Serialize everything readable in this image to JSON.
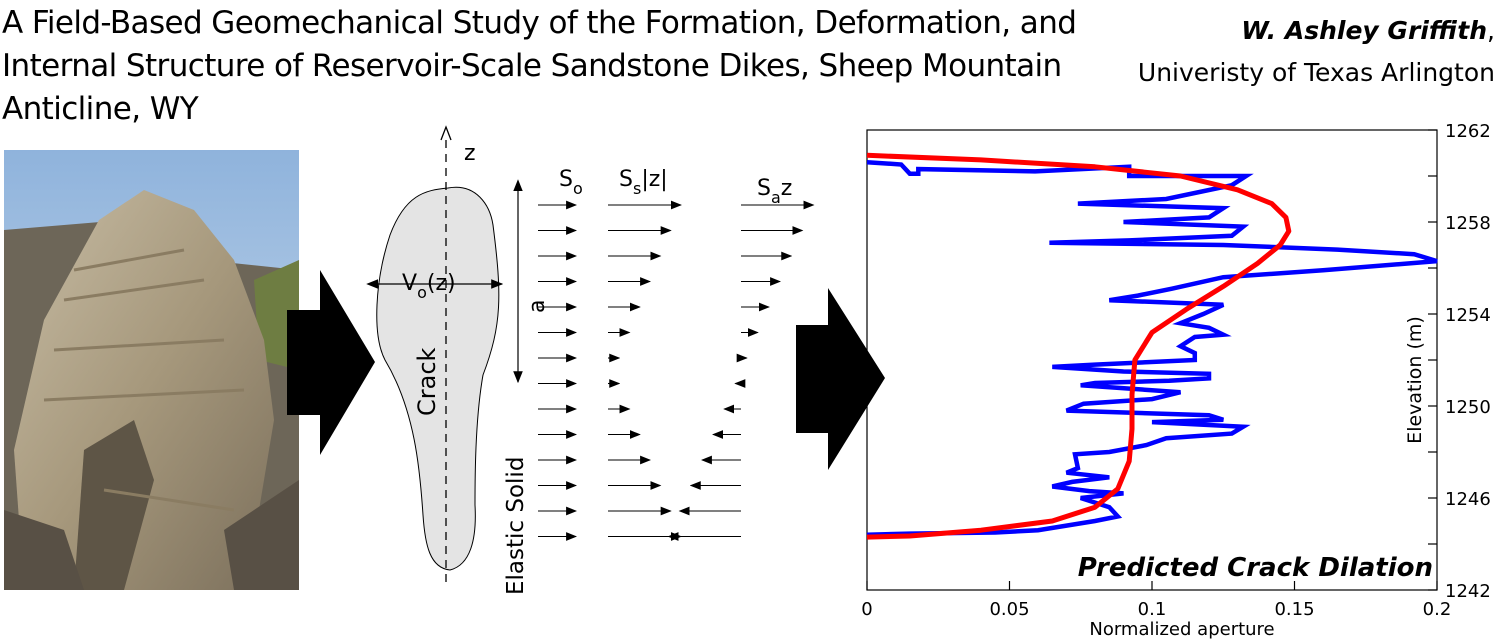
{
  "header": {
    "title": "A Field-Based Geomechanical Study of the Formation, Deformation, and Internal Structure of Reservoir-Scale Sandstone Dikes, Sheep Mountain Anticline, WY",
    "author_name": "W. Ashley Griffith",
    "author_comma": ",",
    "affiliation": "Univeristy of Texas Arlington"
  },
  "photo": {
    "subject": "sandstone-dike-outcrop"
  },
  "diagram": {
    "axis_label": "z",
    "aperture_label_main": "V",
    "aperture_label_sub": "o",
    "aperture_label_end": "(z)",
    "length_label": "a",
    "crack_label": "Crack",
    "solid_label": "Elastic Solid",
    "stress_labels": [
      {
        "main": "S",
        "sub": "o",
        "end": ""
      },
      {
        "main": "S",
        "sub": "s",
        "end": "|z|"
      },
      {
        "main": "S",
        "sub": "a",
        "end": "z"
      }
    ]
  },
  "chart_data": {
    "type": "line",
    "title": "Predicted Crack Dilation",
    "xlabel": "Normalized aperture",
    "ylabel": "Elevation (m)",
    "xlim": [
      0,
      0.2
    ],
    "ylim": [
      1242,
      1262
    ],
    "xticks": [
      "0",
      "0.05",
      "0.1",
      "0.15",
      "0.2"
    ],
    "yticks": [
      "1242",
      "1246",
      "1250",
      "1254",
      "1258",
      "1262"
    ],
    "series": [
      {
        "color": "#0000ff",
        "points": [
          [
            0.0,
            1260.6
          ],
          [
            0.012,
            1260.5
          ],
          [
            0.015,
            1260.1
          ],
          [
            0.018,
            1260.1
          ],
          [
            0.018,
            1260.3
          ],
          [
            0.059,
            1260.2
          ],
          [
            0.092,
            1260.4
          ],
          [
            0.092,
            1260.0
          ],
          [
            0.133,
            1260.0
          ],
          [
            0.128,
            1259.6
          ],
          [
            0.105,
            1259.0
          ],
          [
            0.074,
            1258.8
          ],
          [
            0.125,
            1258.6
          ],
          [
            0.12,
            1258.2
          ],
          [
            0.09,
            1258.0
          ],
          [
            0.132,
            1257.8
          ],
          [
            0.128,
            1257.4
          ],
          [
            0.092,
            1257.2
          ],
          [
            0.064,
            1257.1
          ],
          [
            0.125,
            1257.0
          ],
          [
            0.165,
            1256.8
          ],
          [
            0.192,
            1256.6
          ],
          [
            0.2,
            1256.3
          ],
          [
            0.16,
            1255.9
          ],
          [
            0.125,
            1255.6
          ],
          [
            0.107,
            1255.1
          ],
          [
            0.095,
            1254.8
          ],
          [
            0.085,
            1254.6
          ],
          [
            0.125,
            1254.4
          ],
          [
            0.118,
            1254.0
          ],
          [
            0.11,
            1253.6
          ],
          [
            0.12,
            1253.4
          ],
          [
            0.125,
            1253.1
          ],
          [
            0.115,
            1253.0
          ],
          [
            0.11,
            1252.6
          ],
          [
            0.115,
            1252.3
          ],
          [
            0.115,
            1252.0
          ],
          [
            0.08,
            1251.8
          ],
          [
            0.065,
            1251.7
          ],
          [
            0.09,
            1251.5
          ],
          [
            0.12,
            1251.4
          ],
          [
            0.12,
            1251.2
          ],
          [
            0.106,
            1251.1
          ],
          [
            0.08,
            1251.0
          ],
          [
            0.075,
            1250.9
          ],
          [
            0.11,
            1250.6
          ],
          [
            0.1,
            1250.3
          ],
          [
            0.076,
            1250.1
          ],
          [
            0.07,
            1249.8
          ],
          [
            0.12,
            1249.6
          ],
          [
            0.125,
            1249.4
          ],
          [
            0.1,
            1249.3
          ],
          [
            0.132,
            1249.1
          ],
          [
            0.128,
            1248.8
          ],
          [
            0.105,
            1248.6
          ],
          [
            0.098,
            1248.3
          ],
          [
            0.085,
            1248.0
          ],
          [
            0.073,
            1247.9
          ],
          [
            0.074,
            1247.3
          ],
          [
            0.07,
            1247.1
          ],
          [
            0.085,
            1246.9
          ],
          [
            0.072,
            1246.7
          ],
          [
            0.065,
            1246.5
          ],
          [
            0.078,
            1246.3
          ],
          [
            0.09,
            1246.2
          ],
          [
            0.075,
            1246.0
          ],
          [
            0.085,
            1245.6
          ],
          [
            0.088,
            1245.2
          ],
          [
            0.08,
            1245.0
          ],
          [
            0.07,
            1244.8
          ],
          [
            0.06,
            1244.6
          ],
          [
            0.045,
            1244.5
          ],
          [
            0.015,
            1244.45
          ],
          [
            0.0,
            1244.4
          ]
        ]
      },
      {
        "color": "#ff0000",
        "points": [
          [
            0.0,
            1260.9
          ],
          [
            0.04,
            1260.7
          ],
          [
            0.08,
            1260.4
          ],
          [
            0.11,
            1260.0
          ],
          [
            0.13,
            1259.4
          ],
          [
            0.142,
            1258.8
          ],
          [
            0.147,
            1258.2
          ],
          [
            0.148,
            1257.6
          ],
          [
            0.145,
            1257.0
          ],
          [
            0.137,
            1256.2
          ],
          [
            0.125,
            1255.2
          ],
          [
            0.112,
            1254.2
          ],
          [
            0.1,
            1253.2
          ],
          [
            0.094,
            1252.0
          ],
          [
            0.093,
            1250.5
          ],
          [
            0.093,
            1249.0
          ],
          [
            0.092,
            1247.6
          ],
          [
            0.088,
            1246.4
          ],
          [
            0.08,
            1245.6
          ],
          [
            0.065,
            1245.0
          ],
          [
            0.04,
            1244.6
          ],
          [
            0.015,
            1244.35
          ],
          [
            0.0,
            1244.3
          ]
        ]
      }
    ]
  }
}
